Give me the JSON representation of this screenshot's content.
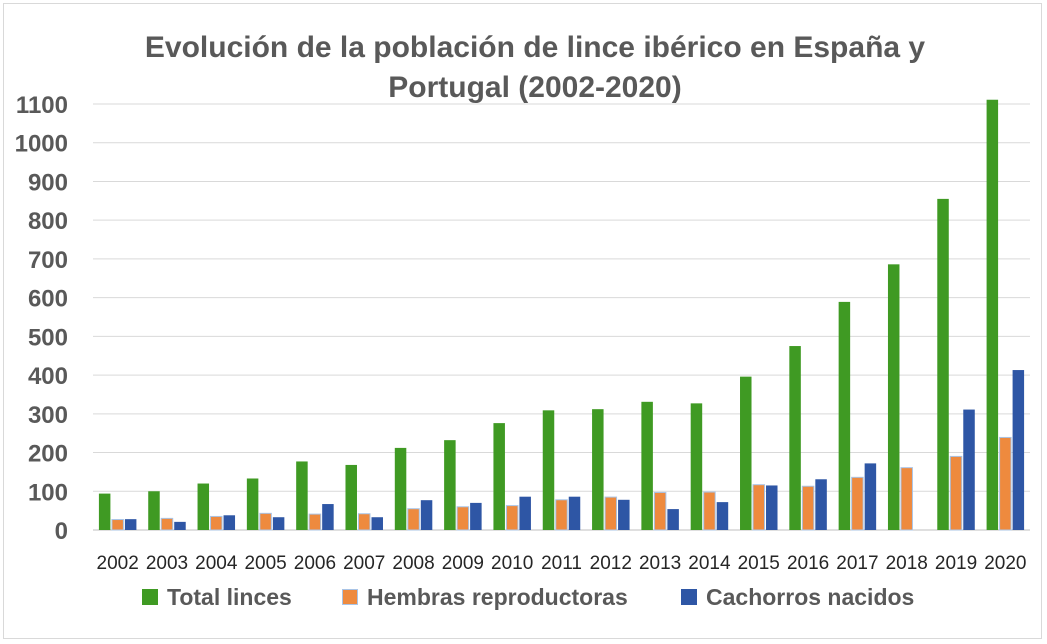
{
  "chart_data": {
    "type": "bar",
    "title": "Evolución de la población de lince ibérico en España y Portugal (2002-2020)",
    "title_lines": [
      "Evolución de la población de lince ibérico en España y",
      "Portugal (2002-2020)"
    ],
    "categories": [
      "2002",
      "2003",
      "2004",
      "2005",
      "2006",
      "2007",
      "2008",
      "2009",
      "2010",
      "2011",
      "2012",
      "2013",
      "2014",
      "2015",
      "2016",
      "2017",
      "2018",
      "2019",
      "2020"
    ],
    "ylim": [
      0,
      1100
    ],
    "yticks": [
      0,
      100,
      200,
      300,
      400,
      500,
      600,
      700,
      800,
      900,
      1000,
      1100
    ],
    "grid": true,
    "legend_position": "bottom",
    "series": [
      {
        "name": "Total linces",
        "color": "#3f9a23",
        "values": [
          94,
          100,
          120,
          133,
          177,
          168,
          212,
          232,
          276,
          309,
          312,
          331,
          327,
          396,
          475,
          589,
          686,
          855,
          1111
        ]
      },
      {
        "name": "Hembras reproductoras",
        "color": "#ee8a3e",
        "values": [
          27,
          30,
          35,
          43,
          41,
          42,
          55,
          60,
          63,
          78,
          85,
          97,
          98,
          117,
          113,
          136,
          161,
          190,
          239
        ]
      },
      {
        "name": "Cachorros nacidos",
        "color": "#2e56a5",
        "values": [
          28,
          21,
          38,
          33,
          67,
          33,
          77,
          70,
          86,
          86,
          78,
          54,
          72,
          115,
          131,
          172,
          null,
          311,
          413
        ]
      }
    ]
  }
}
